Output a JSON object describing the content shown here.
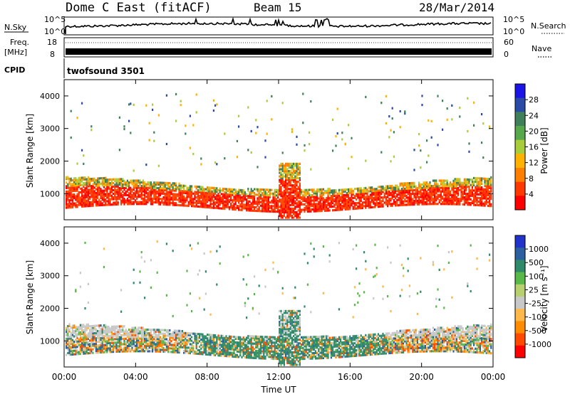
{
  "header": {
    "title": "Dome C East (fitACF)",
    "beam": "Beam 15",
    "date": "28/Mar/2014"
  },
  "aux_panels": {
    "nsky_label": "N.Sky",
    "nsky_ticks": [
      "10^5",
      "10^0"
    ],
    "nsearch_label": "N.Search",
    "nsearch_ticks": [
      "10^5",
      "10^0"
    ],
    "freq_label": "Freq.",
    "freq_unit": "[MHz]",
    "freq_ticks": [
      "18",
      "8"
    ],
    "nave_label": "Nave",
    "nave_ticks": [
      "60",
      "0"
    ],
    "cpid_label": "CPID",
    "cpid_value": "twofsound 3501"
  },
  "chart_data": [
    {
      "type": "heatmap",
      "name": "power",
      "ylabel": "Slant Range [km]",
      "yticks": [
        1000,
        2000,
        3000,
        4000
      ],
      "ylim": [
        200,
        4500
      ],
      "colorbar_label": "Power [dB]",
      "colorbar_ticks": [
        "4",
        "8",
        "12",
        "16",
        "20",
        "24",
        "28"
      ],
      "colorbar_colors": [
        "#1a14e6",
        "#2a4aa8",
        "#3f7f5a",
        "#56a84a",
        "#a8cc3a",
        "#ffb300",
        "#ff7f00",
        "#ff3a00",
        "#ff0000"
      ]
    },
    {
      "type": "heatmap",
      "name": "velocity",
      "ylabel": "Slant Range [km]",
      "yticks": [
        1000,
        2000,
        3000,
        4000
      ],
      "ylim": [
        200,
        4500
      ],
      "xlabel": "Time UT",
      "xticks": [
        "00:00",
        "04:00",
        "08:00",
        "12:00",
        "16:00",
        "20:00",
        "00:00"
      ],
      "colorbar_label": "Velocity [m s⁻¹]",
      "colorbar_ticks": [
        "1000",
        "500",
        "100",
        "25",
        "-25",
        "-100",
        "-500",
        "-1000"
      ],
      "colorbar_colors": [
        "#2233cc",
        "#2a5fa0",
        "#2f8a6a",
        "#58b848",
        "#b8d070",
        "#c8c8c8",
        "#ffb84a",
        "#ff8c00",
        "#ff4a00",
        "#ff0000"
      ]
    }
  ]
}
